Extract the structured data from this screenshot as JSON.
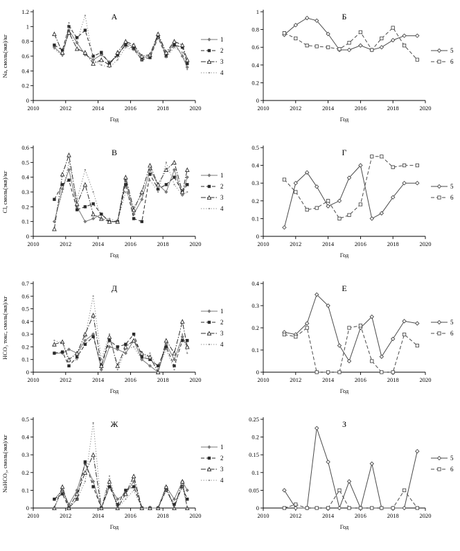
{
  "figure": {
    "background": "#ffffff",
    "axis_color": "#000000",
    "xlabel": "Год"
  },
  "chart_data": [
    {
      "id": "A",
      "type": "line",
      "title": "А",
      "xlabel": "Год",
      "ylabel": "Na, смоль(экв)/кг",
      "xlim": [
        2010,
        2020
      ],
      "ylim": [
        0,
        1.2
      ],
      "xticks": [
        2010,
        2012,
        2014,
        2016,
        2018,
        2020
      ],
      "yticks": [
        0,
        0.2,
        0.4,
        0.6,
        0.8,
        1,
        1.2
      ],
      "grid": false,
      "legend_position": "right",
      "x": [
        2011.3,
        2011.8,
        2012.2,
        2012.7,
        2013.2,
        2013.7,
        2014.2,
        2014.7,
        2015.2,
        2015.7,
        2016.2,
        2016.7,
        2017.2,
        2017.7,
        2018.2,
        2018.7,
        2019.2,
        2019.5
      ],
      "series": [
        {
          "name": "1",
          "line": "solid",
          "marker": "diamond",
          "color": "#7a7a7a",
          "values": [
            0.72,
            0.62,
            0.95,
            0.78,
            0.62,
            0.55,
            0.62,
            0.52,
            0.6,
            0.78,
            0.72,
            0.58,
            0.6,
            0.88,
            0.62,
            0.78,
            0.6,
            0.45
          ]
        },
        {
          "name": "2",
          "line": "dashed",
          "marker": "square",
          "color": "#2b2b2b",
          "values": [
            0.75,
            0.68,
            1.0,
            0.85,
            0.95,
            0.6,
            0.65,
            0.5,
            0.62,
            0.75,
            0.7,
            0.55,
            0.58,
            0.85,
            0.6,
            0.75,
            0.72,
            0.5
          ]
        },
        {
          "name": "3",
          "line": "dashdot",
          "marker": "triangle-open",
          "color": "#2b2b2b",
          "values": [
            0.9,
            0.65,
            0.92,
            0.7,
            0.65,
            0.5,
            0.55,
            0.48,
            0.65,
            0.8,
            0.75,
            0.6,
            0.62,
            0.9,
            0.65,
            0.8,
            0.75,
            0.55
          ]
        },
        {
          "name": "4",
          "line": "dotted",
          "marker": "dot",
          "color": "#8a8a8a",
          "values": [
            0.7,
            0.6,
            1.05,
            0.8,
            1.15,
            0.55,
            0.48,
            0.45,
            0.55,
            0.72,
            0.68,
            0.55,
            0.6,
            0.85,
            0.58,
            0.72,
            0.65,
            0.42
          ]
        }
      ]
    },
    {
      "id": "B",
      "type": "line",
      "title": "Б",
      "xlabel": "Год",
      "ylabel": "",
      "xlim": [
        2010,
        2020
      ],
      "ylim": [
        0,
        1
      ],
      "xticks": [
        2010,
        2012,
        2014,
        2016,
        2018,
        2020
      ],
      "yticks": [
        0,
        0.2,
        0.4,
        0.6,
        0.8,
        1
      ],
      "grid": false,
      "legend_position": "right",
      "x": [
        2011.3,
        2012,
        2012.7,
        2013.3,
        2014,
        2014.7,
        2015.3,
        2016,
        2016.7,
        2017.3,
        2018,
        2018.7,
        2019.5
      ],
      "series": [
        {
          "name": "5",
          "line": "solid",
          "marker": "diamond-open",
          "color": "#4a4a4a",
          "values": [
            0.74,
            0.85,
            0.93,
            0.9,
            0.75,
            0.57,
            0.57,
            0.62,
            0.57,
            0.6,
            0.68,
            0.73,
            0.73
          ]
        },
        {
          "name": "6",
          "line": "dashed",
          "marker": "square-open",
          "color": "#4a4a4a",
          "values": [
            0.76,
            0.7,
            0.62,
            0.61,
            0.6,
            0.58,
            0.65,
            0.77,
            0.57,
            0.7,
            0.82,
            0.62,
            0.46
          ]
        }
      ]
    },
    {
      "id": "V",
      "type": "line",
      "title": "В",
      "xlabel": "Год",
      "ylabel": "Cl, смоль(экв)/кг",
      "xlim": [
        2010,
        2020
      ],
      "ylim": [
        0,
        0.6
      ],
      "xticks": [
        2010,
        2012,
        2014,
        2016,
        2018,
        2020
      ],
      "yticks": [
        0,
        0.1,
        0.2,
        0.3,
        0.4,
        0.5,
        0.6
      ],
      "grid": false,
      "legend_position": "right",
      "x": [
        2011.3,
        2011.8,
        2012.2,
        2012.7,
        2013.2,
        2013.7,
        2014.2,
        2014.7,
        2015.2,
        2015.7,
        2016.2,
        2016.7,
        2017.2,
        2017.7,
        2018.2,
        2018.7,
        2019.2,
        2019.5
      ],
      "series": [
        {
          "name": "1",
          "line": "solid",
          "marker": "diamond",
          "color": "#7a7a7a",
          "values": [
            0.1,
            0.32,
            0.45,
            0.2,
            0.1,
            0.12,
            0.15,
            0.1,
            0.1,
            0.38,
            0.15,
            0.25,
            0.45,
            0.35,
            0.3,
            0.45,
            0.28,
            0.4
          ]
        },
        {
          "name": "2",
          "line": "dashed",
          "marker": "square",
          "color": "#2b2b2b",
          "values": [
            0.25,
            0.35,
            0.38,
            0.18,
            0.2,
            0.22,
            0.15,
            0.1,
            0.1,
            0.35,
            0.12,
            0.1,
            0.42,
            0.32,
            0.35,
            0.4,
            0.3,
            0.35
          ]
        },
        {
          "name": "3",
          "line": "dashdot",
          "marker": "triangle-open",
          "color": "#2b2b2b",
          "values": [
            0.05,
            0.42,
            0.55,
            0.22,
            0.35,
            0.15,
            0.12,
            0.1,
            0.1,
            0.4,
            0.18,
            0.3,
            0.48,
            0.35,
            0.45,
            0.5,
            0.3,
            0.45
          ]
        },
        {
          "name": "4",
          "line": "dotted",
          "marker": "dot",
          "color": "#8a8a8a",
          "values": [
            0.1,
            0.3,
            0.5,
            0.25,
            0.45,
            0.3,
            0.12,
            0.12,
            0.1,
            0.3,
            0.2,
            0.28,
            0.38,
            0.3,
            0.5,
            0.35,
            0.28,
            0.3
          ]
        }
      ]
    },
    {
      "id": "G",
      "type": "line",
      "title": "Г",
      "xlabel": "Год",
      "ylabel": "",
      "xlim": [
        2010,
        2020
      ],
      "ylim": [
        0,
        0.5
      ],
      "xticks": [
        2010,
        2012,
        2014,
        2016,
        2018,
        2020
      ],
      "yticks": [
        0,
        0.1,
        0.2,
        0.3,
        0.4,
        0.5
      ],
      "grid": false,
      "legend_position": "right",
      "x": [
        2011.3,
        2012,
        2012.7,
        2013.3,
        2014,
        2014.7,
        2015.3,
        2016,
        2016.7,
        2017.3,
        2018,
        2018.7,
        2019.5
      ],
      "series": [
        {
          "name": "5",
          "line": "solid",
          "marker": "diamond-open",
          "color": "#4a4a4a",
          "values": [
            0.05,
            0.3,
            0.36,
            0.28,
            0.17,
            0.2,
            0.33,
            0.4,
            0.1,
            0.13,
            0.22,
            0.3,
            0.3
          ]
        },
        {
          "name": "6",
          "line": "dashed",
          "marker": "square-open",
          "color": "#4a4a4a",
          "values": [
            0.32,
            0.25,
            0.15,
            0.16,
            0.2,
            0.1,
            0.12,
            0.18,
            0.45,
            0.45,
            0.39,
            0.4,
            0.4
          ]
        }
      ]
    },
    {
      "id": "D",
      "type": "line",
      "title": "Д",
      "xlabel": "Год",
      "ylabel": "HCO₃ токс, смоль(экв)/кг",
      "xlim": [
        2010,
        2020
      ],
      "ylim": [
        0,
        0.7
      ],
      "xticks": [
        2010,
        2012,
        2014,
        2016,
        2018,
        2020
      ],
      "yticks": [
        0,
        0.1,
        0.2,
        0.3,
        0.4,
        0.5,
        0.6,
        0.7
      ],
      "grid": false,
      "legend_position": "right",
      "x": [
        2011.3,
        2011.8,
        2012.2,
        2012.7,
        2013.2,
        2013.7,
        2014.2,
        2014.7,
        2015.2,
        2015.7,
        2016.2,
        2016.7,
        2017.2,
        2017.7,
        2018.2,
        2018.7,
        2019.2,
        2019.5
      ],
      "series": [
        {
          "name": "1",
          "line": "solid",
          "marker": "diamond",
          "color": "#7a7a7a",
          "values": [
            0.15,
            0.15,
            0.18,
            0.15,
            0.25,
            0.3,
            0.02,
            0.2,
            0.18,
            0.15,
            0.25,
            0.1,
            0.05,
            0.0,
            0.22,
            0.1,
            0.28,
            0.2
          ]
        },
        {
          "name": "2",
          "line": "dashed",
          "marker": "square",
          "color": "#2b2b2b",
          "values": [
            0.15,
            0.16,
            0.05,
            0.12,
            0.22,
            0.28,
            0.05,
            0.25,
            0.2,
            0.22,
            0.3,
            0.12,
            0.1,
            0.05,
            0.2,
            0.05,
            0.25,
            0.25
          ]
        },
        {
          "name": "3",
          "line": "dashdot",
          "marker": "triangle-open",
          "color": "#2b2b2b",
          "values": [
            0.22,
            0.24,
            0.1,
            0.15,
            0.3,
            0.45,
            0.05,
            0.28,
            0.05,
            0.2,
            0.25,
            0.15,
            0.12,
            0.0,
            0.25,
            0.15,
            0.4,
            0.2
          ]
        },
        {
          "name": "4",
          "line": "dotted",
          "marker": "dot",
          "color": "#8a8a8a",
          "values": [
            0.25,
            0.23,
            0.08,
            0.1,
            0.28,
            0.6,
            0.1,
            0.3,
            0.02,
            0.18,
            0.2,
            0.1,
            0.15,
            0.02,
            0.18,
            0.02,
            0.3,
            0.15
          ]
        }
      ]
    },
    {
      "id": "E",
      "type": "line",
      "title": "Е",
      "xlabel": "Год",
      "ylabel": "",
      "xlim": [
        2010,
        2020
      ],
      "ylim": [
        0,
        0.4
      ],
      "xticks": [
        2010,
        2012,
        2014,
        2016,
        2018,
        2020
      ],
      "yticks": [
        0,
        0.1,
        0.2,
        0.3,
        0.4
      ],
      "grid": false,
      "legend_position": "right",
      "x": [
        2011.3,
        2012,
        2012.7,
        2013.3,
        2014,
        2014.7,
        2015.3,
        2016,
        2016.7,
        2017.3,
        2018,
        2018.7,
        2019.5
      ],
      "series": [
        {
          "name": "5",
          "line": "solid",
          "marker": "diamond-open",
          "color": "#4a4a4a",
          "values": [
            0.18,
            0.17,
            0.22,
            0.35,
            0.3,
            0.12,
            0.05,
            0.2,
            0.25,
            0.07,
            0.15,
            0.23,
            0.22
          ]
        },
        {
          "name": "6",
          "line": "dashed",
          "marker": "square-open",
          "color": "#4a4a4a",
          "values": [
            0.17,
            0.16,
            0.2,
            0.0,
            0.0,
            0.0,
            0.2,
            0.21,
            0.05,
            0.0,
            0.0,
            0.17,
            0.12
          ]
        }
      ]
    },
    {
      "id": "ZH",
      "type": "line",
      "title": "Ж",
      "xlabel": "Год",
      "ylabel": "NaHCO₃, смоль(экв)/кг",
      "xlim": [
        2010,
        2020
      ],
      "ylim": [
        0,
        0.5
      ],
      "xticks": [
        2010,
        2012,
        2014,
        2016,
        2018,
        2020
      ],
      "yticks": [
        0,
        0.1,
        0.2,
        0.3,
        0.4,
        0.5
      ],
      "grid": false,
      "legend_position": "right",
      "x": [
        2011.3,
        2011.8,
        2012.2,
        2012.7,
        2013.2,
        2013.7,
        2014.2,
        2014.7,
        2015.2,
        2015.7,
        2016.2,
        2016.7,
        2017.2,
        2017.7,
        2018.2,
        2018.7,
        2019.2,
        2019.5
      ],
      "series": [
        {
          "name": "1",
          "line": "solid",
          "marker": "diamond",
          "color": "#7a7a7a",
          "values": [
            0.05,
            0.1,
            0.02,
            0.1,
            0.25,
            0.15,
            0.0,
            0.12,
            0.05,
            0.08,
            0.15,
            0.0,
            0.0,
            0.0,
            0.12,
            0.05,
            0.15,
            0.1
          ]
        },
        {
          "name": "2",
          "line": "dashed",
          "marker": "square",
          "color": "#2b2b2b",
          "values": [
            0.05,
            0.08,
            0.0,
            0.05,
            0.26,
            0.12,
            0.0,
            0.12,
            0.02,
            0.1,
            0.12,
            0.0,
            0.0,
            0.0,
            0.1,
            0.02,
            0.12,
            0.05
          ]
        },
        {
          "name": "3",
          "line": "dashdot",
          "marker": "triangle-open",
          "color": "#2b2b2b",
          "values": [
            0.0,
            0.12,
            0.0,
            0.08,
            0.2,
            0.3,
            0.0,
            0.15,
            0.0,
            0.08,
            0.18,
            0.0,
            0.0,
            0.0,
            0.12,
            0.0,
            0.15,
            0.0
          ]
        },
        {
          "name": "4",
          "line": "dotted",
          "marker": "dot",
          "color": "#8a8a8a",
          "values": [
            0.0,
            0.1,
            0.0,
            0.05,
            0.15,
            0.48,
            0.0,
            0.18,
            0.0,
            0.05,
            0.1,
            0.0,
            0.0,
            0.0,
            0.1,
            0.0,
            0.12,
            0.0
          ]
        }
      ]
    },
    {
      "id": "Z",
      "type": "line",
      "title": "З",
      "xlabel": "Год",
      "ylabel": "",
      "xlim": [
        2010,
        2020
      ],
      "ylim": [
        0,
        0.25
      ],
      "xticks": [
        2010,
        2012,
        2014,
        2016,
        2018,
        2020
      ],
      "yticks": [
        0,
        0.05,
        0.1,
        0.15,
        0.2,
        0.25
      ],
      "grid": false,
      "legend_position": "right",
      "x": [
        2011.3,
        2012,
        2012.7,
        2013.3,
        2014,
        2014.7,
        2015.3,
        2016,
        2016.7,
        2017.3,
        2018,
        2018.7,
        2019.5
      ],
      "series": [
        {
          "name": "5",
          "line": "solid",
          "marker": "diamond-open",
          "color": "#4a4a4a",
          "values": [
            0.05,
            0.0,
            0.0,
            0.225,
            0.13,
            0.0,
            0.075,
            0.0,
            0.125,
            0.0,
            0.0,
            0.0,
            0.16
          ]
        },
        {
          "name": "6",
          "line": "dashed",
          "marker": "square-open",
          "color": "#4a4a4a",
          "values": [
            0.0,
            0.01,
            0.0,
            0.0,
            0.0,
            0.05,
            0.0,
            0.0,
            0.0,
            0.0,
            0.0,
            0.05,
            0.0
          ]
        }
      ]
    }
  ]
}
